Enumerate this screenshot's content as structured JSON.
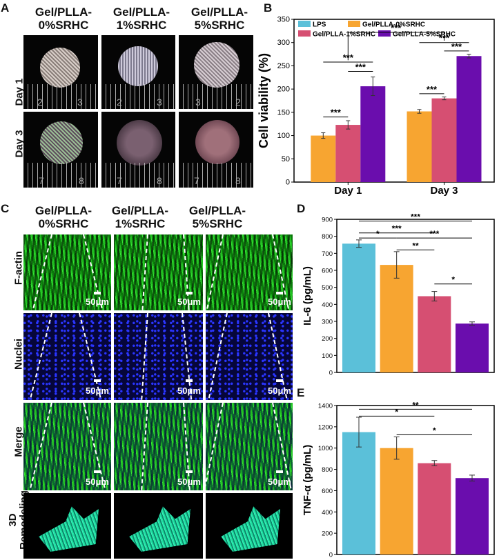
{
  "panels": {
    "a": {
      "letter": "A",
      "columns": [
        "Gel/PLLA-\n0%SRHC",
        "Gel/PLLA-\n1%SRHC",
        "Gel/PLLA-\n5%SRHC"
      ],
      "rows": [
        "Day 1",
        "Day 3"
      ],
      "ruler_numbers": [
        [
          "2",
          "3"
        ],
        [
          "2",
          "3"
        ],
        [
          "3",
          "2"
        ],
        [
          "7",
          "8"
        ],
        [
          "7",
          "8"
        ],
        [
          "7",
          "8"
        ]
      ]
    },
    "b": {
      "letter": "B"
    },
    "c": {
      "letter": "C",
      "columns": [
        "Gel/PLLA-\n0%SRHC",
        "Gel/PLLA-\n1%SRHC",
        "Gel/PLLA-\n5%SRHC"
      ],
      "rows": [
        "F-actin",
        "Nuclei",
        "Merge",
        "3D\nRemodeling"
      ],
      "scale_label": "50μm"
    },
    "d": {
      "letter": "D"
    },
    "e": {
      "letter": "E"
    }
  },
  "colors": {
    "lps": "#5bc0d9",
    "gel0": "#f7a531",
    "gel1": "#d64f72",
    "gel5": "#6a0dad"
  },
  "chart_data": [
    {
      "id": "b",
      "type": "bar",
      "categories": [
        "Day 1",
        "Day 3"
      ],
      "ylabel": "Cell viability (%)",
      "ylim": [
        0,
        350
      ],
      "yticks": [
        0,
        50,
        100,
        150,
        200,
        250,
        300,
        350
      ],
      "legend": [
        "LPS",
        "Gel/PLLA-0%SRHC",
        "Gel/PLLA-1%SRHC",
        "Gel/PLLA-5%SRHC"
      ],
      "series": [
        {
          "name": "Gel/PLLA-0%SRHC",
          "values": [
            100,
            152
          ],
          "errors": [
            6,
            4
          ]
        },
        {
          "name": "Gel/PLLA-1%SRHC",
          "values": [
            123,
            180
          ],
          "errors": [
            9,
            3
          ]
        },
        {
          "name": "Gel/PLLA-5%SRHC",
          "values": [
            206,
            271
          ],
          "errors": [
            20,
            4
          ]
        }
      ],
      "significance": [
        "***",
        "***",
        "***",
        "***",
        "***",
        "***",
        "***"
      ]
    },
    {
      "id": "d",
      "type": "bar",
      "categories": [
        "LPS",
        "Gel/PLLA-0%SRHC",
        "Gel/PLLA-1%SRHC",
        "Gel/PLLA-5%SRHC"
      ],
      "ylabel": "IL-6 (pg/mL)",
      "ylim": [
        0,
        900
      ],
      "yticks": [
        0,
        100,
        200,
        300,
        400,
        500,
        600,
        700,
        800,
        900
      ],
      "values": [
        757,
        632,
        448,
        287
      ],
      "errors": [
        22,
        78,
        28,
        10
      ],
      "significance": [
        "***",
        "***",
        "*",
        "***",
        "**",
        "*"
      ]
    },
    {
      "id": "e",
      "type": "bar",
      "categories": [
        "LPS",
        "Gel/PLLA-0%SRHC",
        "Gel/PLLA-1%SRHC",
        "Gel/PLLA-5%SRHC"
      ],
      "ylabel": "TNF-α (pg/mL)",
      "ylim": [
        0,
        1400
      ],
      "yticks": [
        0,
        200,
        400,
        600,
        800,
        1000,
        1200,
        1400
      ],
      "values": [
        1150,
        1000,
        858,
        718
      ],
      "errors": [
        140,
        105,
        25,
        28
      ],
      "significance": [
        "**",
        "*",
        "*"
      ]
    }
  ]
}
